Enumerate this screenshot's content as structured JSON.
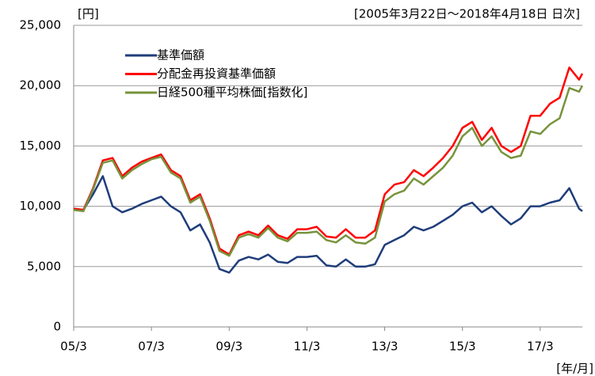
{
  "chart_data": {
    "type": "line",
    "unit_label": "[円]",
    "subtitle": "[2005年3月22日～2018年4月18日 日次]",
    "x_label": "[年/月]",
    "x": [
      "2005-03",
      "2005-06",
      "2005-09",
      "2005-12",
      "2006-03",
      "2006-06",
      "2006-09",
      "2006-12",
      "2007-03",
      "2007-06",
      "2007-09",
      "2007-12",
      "2008-03",
      "2008-06",
      "2008-09",
      "2008-12",
      "2009-03",
      "2009-06",
      "2009-09",
      "2009-12",
      "2010-03",
      "2010-06",
      "2010-09",
      "2010-12",
      "2011-03",
      "2011-06",
      "2011-09",
      "2011-12",
      "2012-03",
      "2012-06",
      "2012-09",
      "2012-12",
      "2013-03",
      "2013-06",
      "2013-09",
      "2013-12",
      "2014-03",
      "2014-06",
      "2014-09",
      "2014-12",
      "2015-03",
      "2015-06",
      "2015-09",
      "2015-12",
      "2016-03",
      "2016-06",
      "2016-09",
      "2016-12",
      "2017-03",
      "2017-06",
      "2017-09",
      "2017-12",
      "2018-03",
      "2018-04"
    ],
    "series": [
      {
        "name": "基準価額",
        "color": "#1f3d7a",
        "values": [
          9800,
          9700,
          11000,
          12500,
          10000,
          9500,
          9800,
          10200,
          10500,
          10800,
          10000,
          9500,
          8000,
          8500,
          7000,
          4800,
          4500,
          5500,
          5800,
          5600,
          6000,
          5400,
          5300,
          5800,
          5800,
          5900,
          5100,
          5000,
          5600,
          5000,
          5000,
          5200,
          6800,
          7200,
          7600,
          8300,
          8000,
          8300,
          8800,
          9300,
          10000,
          10300,
          9500,
          10000,
          9200,
          8500,
          9000,
          10000,
          10000,
          10300,
          10500,
          11500,
          9800,
          9600
        ]
      },
      {
        "name": "分配金再投資基準価額",
        "color": "#ff0000",
        "values": [
          9800,
          9700,
          11500,
          13800,
          14000,
          12500,
          13200,
          13700,
          14000,
          14300,
          13000,
          12500,
          10500,
          11000,
          9000,
          6500,
          6000,
          7600,
          7900,
          7600,
          8400,
          7600,
          7300,
          8100,
          8100,
          8300,
          7500,
          7400,
          8100,
          7400,
          7400,
          8000,
          11000,
          11800,
          12000,
          13000,
          12500,
          13200,
          14000,
          15000,
          16500,
          17000,
          15500,
          16500,
          15000,
          14500,
          15000,
          17500,
          17500,
          18500,
          19000,
          21500,
          20500,
          21000
        ]
      },
      {
        "name": "日経500種平均株価[指数化]",
        "color": "#77933c",
        "values": [
          9700,
          9600,
          11400,
          13600,
          13800,
          12300,
          13000,
          13500,
          13900,
          14100,
          12800,
          12300,
          10300,
          10800,
          8800,
          6300,
          5900,
          7400,
          7700,
          7400,
          8200,
          7400,
          7100,
          7800,
          7800,
          7900,
          7200,
          7000,
          7600,
          7000,
          6900,
          7400,
          10400,
          11000,
          11300,
          12300,
          11800,
          12500,
          13200,
          14200,
          15800,
          16500,
          15000,
          15800,
          14500,
          14000,
          14200,
          16200,
          16000,
          16800,
          17300,
          19800,
          19500,
          20000
        ]
      }
    ],
    "xlim": [
      "2005-03",
      "2018-04"
    ],
    "xticks": [
      {
        "value": "2005-03",
        "label": "05/3"
      },
      {
        "value": "2007-03",
        "label": "07/3"
      },
      {
        "value": "2009-03",
        "label": "09/3"
      },
      {
        "value": "2011-03",
        "label": "11/3"
      },
      {
        "value": "2013-03",
        "label": "13/3"
      },
      {
        "value": "2015-03",
        "label": "15/3"
      },
      {
        "value": "2017-03",
        "label": "17/3"
      }
    ],
    "ylim": [
      0,
      25000
    ],
    "yticks": [
      0,
      {
        "value": 5000,
        "label": "5,000"
      },
      {
        "value": 10000,
        "label": "10,000"
      },
      {
        "value": 15000,
        "label": "15,000"
      },
      {
        "value": 20000,
        "label": "20,000"
      },
      {
        "value": 25000,
        "label": "25,000"
      }
    ],
    "grid": true
  }
}
